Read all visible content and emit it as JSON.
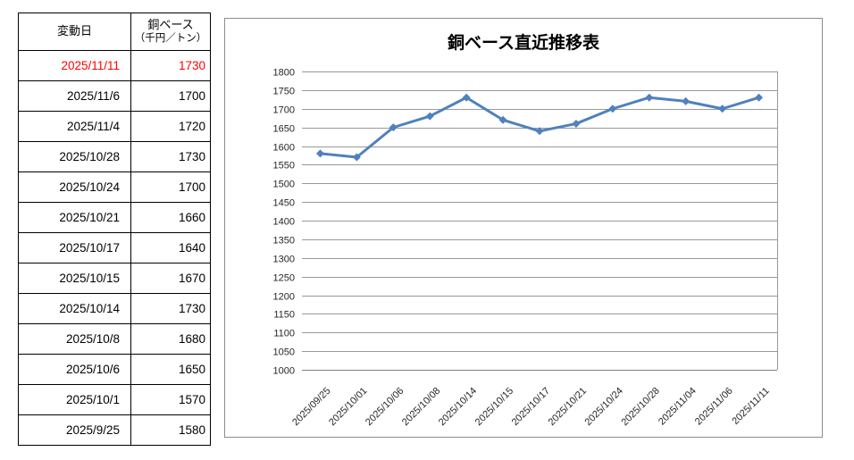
{
  "table": {
    "headers": {
      "date": "変動日",
      "value_line1": "銅ベース",
      "value_line2": "（千円／トン）"
    },
    "rows": [
      {
        "date": "2025/11/11",
        "value": "1730",
        "highlight": true
      },
      {
        "date": "2025/11/6",
        "value": "1700",
        "highlight": false
      },
      {
        "date": "2025/11/4",
        "value": "1720",
        "highlight": false
      },
      {
        "date": "2025/10/28",
        "value": "1730",
        "highlight": false
      },
      {
        "date": "2025/10/24",
        "value": "1700",
        "highlight": false
      },
      {
        "date": "2025/10/21",
        "value": "1660",
        "highlight": false
      },
      {
        "date": "2025/10/17",
        "value": "1640",
        "highlight": false
      },
      {
        "date": "2025/10/15",
        "value": "1670",
        "highlight": false
      },
      {
        "date": "2025/10/14",
        "value": "1730",
        "highlight": false
      },
      {
        "date": "2025/10/8",
        "value": "1680",
        "highlight": false
      },
      {
        "date": "2025/10/6",
        "value": "1650",
        "highlight": false
      },
      {
        "date": "2025/10/1",
        "value": "1570",
        "highlight": false
      },
      {
        "date": "2025/9/25",
        "value": "1580",
        "highlight": false
      }
    ],
    "highlight_color": "#ff0000",
    "text_color": "#000000"
  },
  "chart_data": {
    "type": "line",
    "title": "銅ベース直近推移表",
    "x": [
      "2025/09/25",
      "2025/10/01",
      "2025/10/06",
      "2025/10/08",
      "2025/10/14",
      "2025/10/15",
      "2025/10/17",
      "2025/10/21",
      "2025/10/24",
      "2025/10/28",
      "2025/11/04",
      "2025/11/06",
      "2025/11/11"
    ],
    "series": [
      {
        "name": "銅ベース",
        "values": [
          1580,
          1570,
          1650,
          1680,
          1730,
          1670,
          1640,
          1660,
          1700,
          1730,
          1720,
          1700,
          1730
        ]
      }
    ],
    "xlabel": "",
    "ylabel": "",
    "ylim": [
      1000,
      1800
    ],
    "ytick_step": 50,
    "grid": true,
    "legend_position": "none",
    "marker": "diamond",
    "line_color": "#4f81bd",
    "gridline_color": "#999999",
    "axis_line_color": "#808080",
    "label_color": "#262626"
  }
}
